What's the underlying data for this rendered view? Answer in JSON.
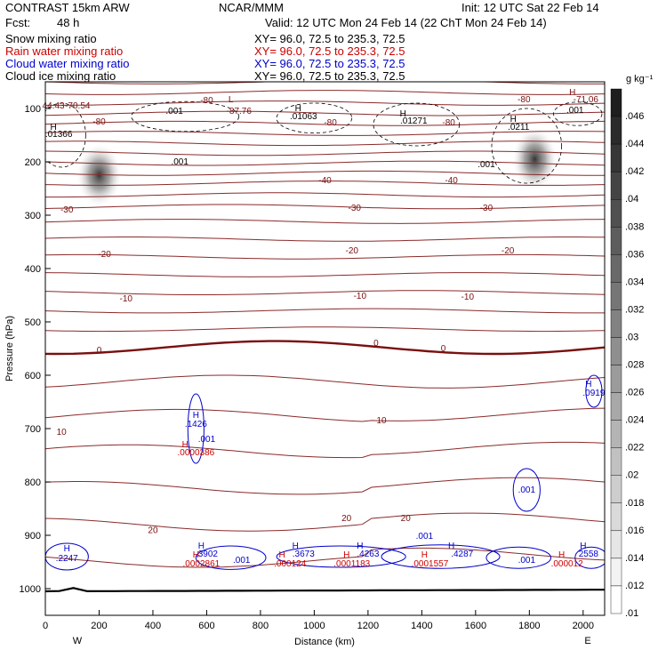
{
  "header": {
    "model": "CONTRAST 15km ARW",
    "org": "NCAR/MMM",
    "init": "Init: 12 UTC Sat 22 Feb 14",
    "fcst_label": "Fcst:",
    "fcst_value": "48 h",
    "valid": "Valid: 12 UTC Mon 24 Feb 14 (22 ChT Mon 24 Feb 14)"
  },
  "fields": [
    {
      "label": "Snow mixing ratio",
      "xy": "XY=  96.0, 72.5 to 235.3, 72.5",
      "color": "#000000"
    },
    {
      "label": "Rain water mixing ratio",
      "xy": "XY=  96.0, 72.5 to 235.3, 72.5",
      "color": "#cc0000"
    },
    {
      "label": "Cloud water mixing ratio",
      "xy": "XY=  96.0, 72.5 to 235.3, 72.5",
      "color": "#0000cc"
    },
    {
      "label": "Cloud ice mixing ratio",
      "xy": "XY=  96.0, 72.5 to 235.3, 72.5",
      "color": "#000000"
    }
  ],
  "chart_data": {
    "type": "contour cross-section",
    "xlabel": "Distance (km)",
    "ylabel": "Pressure (hPa)",
    "xlim": [
      0,
      2080
    ],
    "ylim": [
      1050,
      50
    ],
    "x_ticks": [
      0,
      200,
      400,
      600,
      800,
      1000,
      1200,
      1400,
      1600,
      1800,
      2000
    ],
    "y_ticks": [
      100,
      200,
      300,
      400,
      500,
      600,
      700,
      800,
      900,
      1000
    ],
    "x_end_labels": [
      "W",
      "E"
    ],
    "colorbar": {
      "unit": "g kg⁻¹",
      "ticks": [
        ".046",
        ".044",
        ".042",
        ".04",
        ".038",
        ".036",
        ".034",
        ".032",
        ".03",
        ".028",
        ".026",
        ".024",
        ".022",
        ".02",
        ".018",
        ".016",
        ".014",
        ".012",
        ".01"
      ]
    },
    "temperature_isotherms": [
      {
        "value": -70,
        "label": "-70.54",
        "p": 100
      },
      {
        "value": -40,
        "label": "-40",
        "p": 240
      },
      {
        "value": -30,
        "label": "-30",
        "p": 295
      },
      {
        "value": -20,
        "label": "-20",
        "p": 378
      },
      {
        "value": -10,
        "label": "-10",
        "p": 462
      },
      {
        "value": 0,
        "label": "0",
        "p": 548
      },
      {
        "value": 10,
        "label": "10",
        "p": 708
      },
      {
        "value": 20,
        "label": "20",
        "p": 880
      }
    ],
    "temperature_labels": [
      {
        "text": "-70.54",
        "x": 120,
        "p": 100
      },
      {
        "text": "-80",
        "x": 600,
        "p": 90
      },
      {
        "text": "L",
        "x": 690,
        "p": 88
      },
      {
        "text": "-87.76",
        "x": 720,
        "p": 110
      },
      {
        "text": "-80",
        "x": 200,
        "p": 130
      },
      {
        "text": "-80",
        "x": 1060,
        "p": 132
      },
      {
        "text": "-80",
        "x": 1500,
        "p": 132
      },
      {
        "text": "-80",
        "x": 1780,
        "p": 88
      },
      {
        "text": "H",
        "x": 1960,
        "p": 75
      },
      {
        "text": "-71.06",
        "x": 2010,
        "p": 88
      },
      {
        "text": "44.43",
        "x": 30,
        "p": 100
      },
      {
        "text": "-40",
        "x": 1040,
        "p": 240
      },
      {
        "text": "-40",
        "x": 1510,
        "p": 240
      },
      {
        "text": "-30",
        "x": 80,
        "p": 295
      },
      {
        "text": "-30",
        "x": 1150,
        "p": 292
      },
      {
        "text": "-30",
        "x": 1640,
        "p": 292
      },
      {
        "text": "-20",
        "x": 220,
        "p": 378
      },
      {
        "text": "-20",
        "x": 1140,
        "p": 372
      },
      {
        "text": "-20",
        "x": 1720,
        "p": 372
      },
      {
        "text": "-10",
        "x": 300,
        "p": 462
      },
      {
        "text": "-10",
        "x": 1170,
        "p": 457
      },
      {
        "text": "-10",
        "x": 1570,
        "p": 458
      },
      {
        "text": "0",
        "x": 200,
        "p": 558
      },
      {
        "text": "0",
        "x": 1230,
        "p": 545
      },
      {
        "text": "0",
        "x": 1480,
        "p": 555
      },
      {
        "text": "10",
        "x": 60,
        "p": 712
      },
      {
        "text": "10",
        "x": 1250,
        "p": 690
      },
      {
        "text": "20",
        "x": 400,
        "p": 896
      },
      {
        "text": "20",
        "x": 1120,
        "p": 873
      },
      {
        "text": "20",
        "x": 1340,
        "p": 873
      }
    ],
    "snow_labels": [
      {
        "text": "H",
        "x": 30,
        "p": 140
      },
      {
        "text": ".01366",
        "x": 50,
        "p": 153
      },
      {
        "text": ".001",
        "x": 480,
        "p": 110
      },
      {
        "text": ".001",
        "x": 500,
        "p": 205
      },
      {
        "text": "H",
        "x": 940,
        "p": 105
      },
      {
        "text": ".01063",
        "x": 960,
        "p": 120
      },
      {
        "text": "H",
        "x": 1330,
        "p": 115
      },
      {
        "text": ".01271",
        "x": 1370,
        "p": 128
      },
      {
        "text": "H",
        "x": 1740,
        "p": 125
      },
      {
        "text": ".0211",
        "x": 1760,
        "p": 140
      },
      {
        "text": ".001",
        "x": 1640,
        "p": 210
      },
      {
        "text": ".001",
        "x": 1970,
        "p": 108
      }
    ],
    "cloud_water_labels": [
      {
        "text": "H",
        "x": 560,
        "p": 680
      },
      {
        "text": ".1426",
        "x": 560,
        "p": 697
      },
      {
        "text": ".001",
        "x": 600,
        "p": 725
      },
      {
        "text": "H",
        "x": 2020,
        "p": 622
      },
      {
        "text": ".0919",
        "x": 2040,
        "p": 638
      },
      {
        "text": ".001",
        "x": 1790,
        "p": 820
      },
      {
        "text": "H",
        "x": 80,
        "p": 930
      },
      {
        "text": ".2247",
        "x": 80,
        "p": 948
      },
      {
        "text": "H",
        "x": 580,
        "p": 925
      },
      {
        "text": ".3902",
        "x": 600,
        "p": 940
      },
      {
        "text": ".001",
        "x": 730,
        "p": 952
      },
      {
        "text": "H",
        "x": 930,
        "p": 925
      },
      {
        "text": ".3673",
        "x": 960,
        "p": 940
      },
      {
        "text": "H",
        "x": 1170,
        "p": 925
      },
      {
        "text": ".4263",
        "x": 1200,
        "p": 940
      },
      {
        "text": ".001",
        "x": 1410,
        "p": 907
      },
      {
        "text": "H",
        "x": 1510,
        "p": 925
      },
      {
        "text": ".4287",
        "x": 1550,
        "p": 940
      },
      {
        "text": ".001",
        "x": 1790,
        "p": 952
      },
      {
        "text": "H",
        "x": 2000,
        "p": 925
      },
      {
        "text": "2558",
        "x": 2020,
        "p": 940
      }
    ],
    "rain_labels": [
      {
        "text": "H",
        "x": 520,
        "p": 735
      },
      {
        "text": ".0000386",
        "x": 560,
        "p": 750
      },
      {
        "text": "H",
        "x": 560,
        "p": 942
      },
      {
        "text": ".0002861",
        "x": 580,
        "p": 958
      },
      {
        "text": "H",
        "x": 880,
        "p": 942
      },
      {
        "text": ".000124",
        "x": 910,
        "p": 958
      },
      {
        "text": "H",
        "x": 1120,
        "p": 942
      },
      {
        "text": ".0001183",
        "x": 1140,
        "p": 958
      },
      {
        "text": "H",
        "x": 1410,
        "p": 942
      },
      {
        "text": ".0001557",
        "x": 1430,
        "p": 958
      },
      {
        "text": "H",
        "x": 1920,
        "p": 942
      },
      {
        "text": ".000012",
        "x": 1940,
        "p": 958
      }
    ],
    "cloud_ice_maxima": [
      {
        "x": 200,
        "p": 225,
        "value": 0.046
      },
      {
        "x": 1820,
        "p": 195,
        "value": 0.044
      }
    ]
  }
}
